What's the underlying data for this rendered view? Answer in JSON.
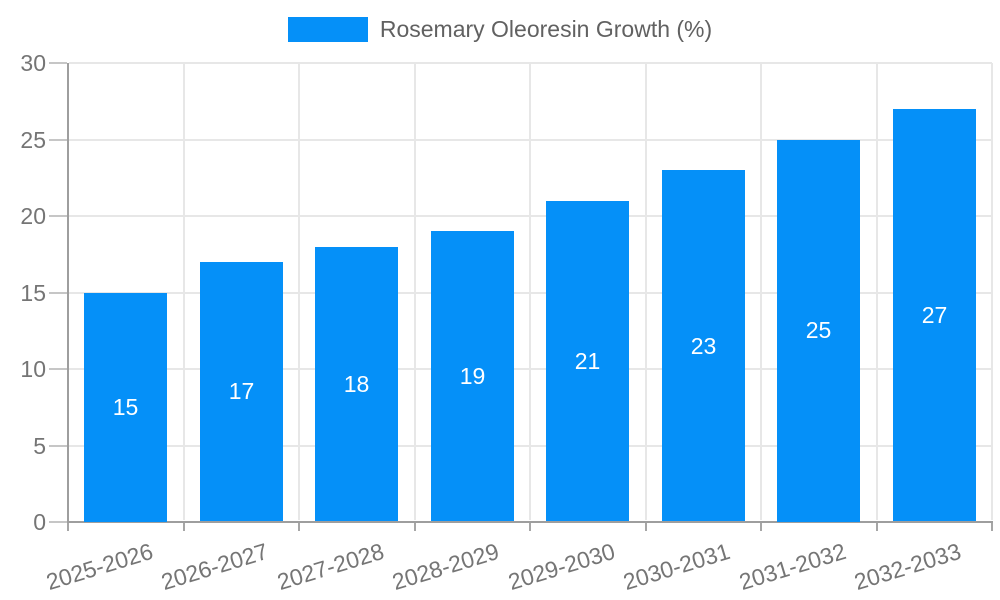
{
  "legend": {
    "label": "Rosemary Oleoresin Growth (%)",
    "swatch_color": "#0590f8"
  },
  "chart_data": {
    "type": "bar",
    "title": "",
    "series_name": "Rosemary Oleoresin Growth (%)",
    "categories": [
      "2025-2026",
      "2026-2027",
      "2027-2028",
      "2028-2029",
      "2029-2030",
      "2030-2031",
      "2031-2032",
      "2032-2033"
    ],
    "values": [
      15,
      17,
      18,
      19,
      21,
      23,
      25,
      27
    ],
    "xlabel": "",
    "ylabel": "",
    "ylim": [
      0,
      30
    ],
    "yticks": [
      0,
      5,
      10,
      15,
      20,
      25,
      30
    ],
    "grid": true,
    "legend_position": "top",
    "bar_color": "#0590f8",
    "value_label_color": "#ffffff",
    "value_label_position": "center"
  },
  "style": {
    "background": "#ffffff",
    "axis_line_color": "#9e9e9e",
    "gridline_color": "#e7e7e7",
    "y_tick_color": "#c6c6c6",
    "x_tick_color": "#a6a6a6",
    "axis_label_color": "#757575",
    "legend_text_color": "#616161"
  }
}
